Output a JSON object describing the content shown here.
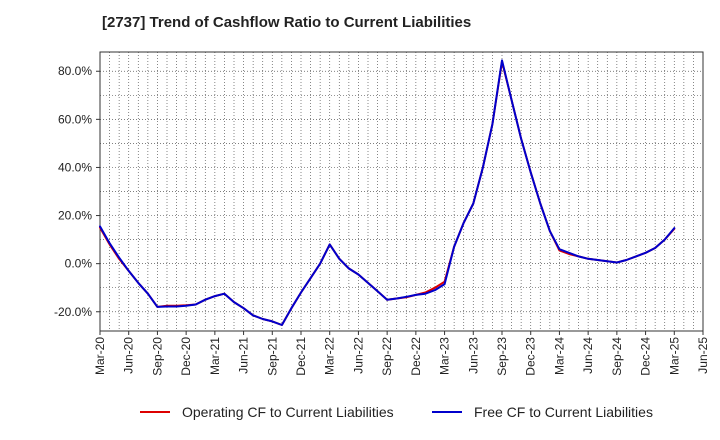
{
  "chart_data": {
    "type": "line",
    "title": "[2737]  Trend of Cashflow Ratio to Current Liabilities",
    "xlabel": "",
    "ylabel": "",
    "x_ticks": [
      "Mar-20",
      "Jun-20",
      "Sep-20",
      "Dec-20",
      "Mar-21",
      "Jun-21",
      "Sep-21",
      "Dec-21",
      "Mar-22",
      "Jun-22",
      "Sep-22",
      "Dec-22",
      "Mar-23",
      "Jun-23",
      "Sep-23",
      "Dec-23",
      "Mar-24",
      "Jun-24",
      "Sep-24",
      "Dec-24",
      "Mar-25",
      "Jun-25"
    ],
    "y_ticks": [
      "80.0%",
      "60.0%",
      "40.0%",
      "20.0%",
      "0.0%",
      "-20.0%"
    ],
    "y_tick_values": [
      80,
      60,
      40,
      20,
      0,
      -20
    ],
    "ylim": [
      -28,
      88
    ],
    "grid": true,
    "legend_position": "bottom",
    "x_months": [
      0,
      1,
      2,
      3,
      4,
      5,
      6,
      7,
      8,
      9,
      10,
      11,
      12,
      13,
      14,
      15,
      16,
      17,
      18,
      19,
      20,
      21,
      22,
      23,
      24,
      25,
      26,
      27,
      28,
      29,
      30,
      31,
      32,
      33,
      34,
      35,
      36,
      37,
      38,
      39,
      40,
      41,
      42,
      43,
      44,
      45,
      46,
      47,
      48,
      49,
      50,
      51,
      52,
      53,
      54,
      55,
      56,
      57,
      58,
      59,
      60,
      61
    ],
    "series": [
      {
        "name": "Operating CF to Current Liabilities",
        "color": "#dd0000",
        "values": [
          15,
          8,
          2,
          -3,
          -8,
          -12.5,
          -18,
          -17.5,
          -17.5,
          -17.3,
          -17,
          -15,
          -13.5,
          -12.5,
          -16,
          -18.5,
          -21.5,
          -23,
          -24,
          -25.5,
          -18.5,
          -12,
          -6,
          0,
          8,
          2,
          -2,
          -4.5,
          -8,
          -11.5,
          -15,
          -14.5,
          -14,
          -13,
          -12,
          -10,
          -7.5,
          7,
          17,
          25,
          40,
          58,
          84,
          68,
          52,
          38,
          25,
          13.5,
          5.5,
          4,
          3,
          2,
          1.5,
          1,
          0.5,
          1.5,
          3,
          4.5,
          6.5,
          10,
          14.5,
          null
        ]
      },
      {
        "name": "Free CF to Current Liabilities",
        "color": "#0000cc",
        "values": [
          15.5,
          8.5,
          2.5,
          -3,
          -8,
          -12.5,
          -18,
          -17.8,
          -17.8,
          -17.5,
          -17,
          -15,
          -13.5,
          -12.5,
          -16,
          -18.5,
          -21.5,
          -23,
          -24,
          -25.5,
          -18.5,
          -12,
          -6,
          0,
          8,
          2,
          -2,
          -4.5,
          -8,
          -11.5,
          -15,
          -14.5,
          -13.8,
          -13,
          -12.5,
          -11,
          -8.5,
          7,
          17,
          25,
          40,
          58,
          84.5,
          68,
          52,
          38,
          25,
          13.5,
          6,
          4.5,
          3,
          2,
          1.5,
          1,
          0.5,
          1.5,
          3,
          4.5,
          6.5,
          10,
          14.8,
          null
        ]
      }
    ]
  }
}
